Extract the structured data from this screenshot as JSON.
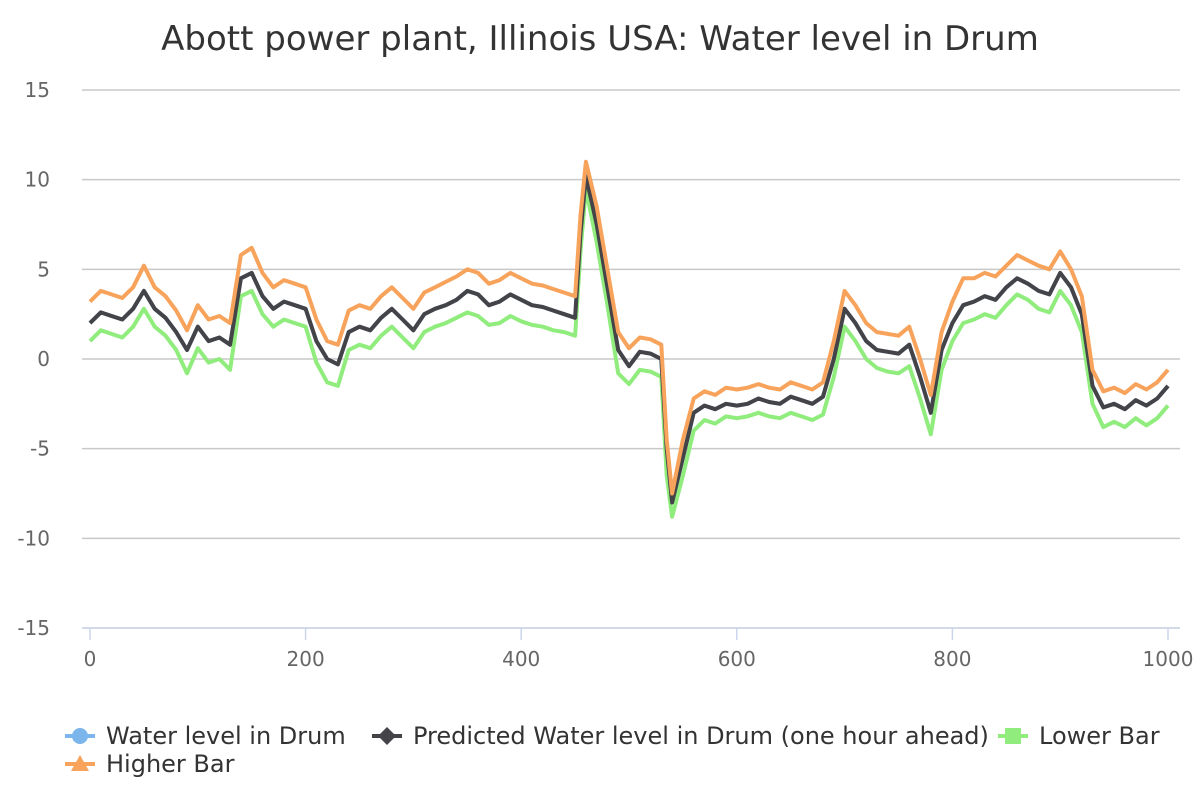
{
  "chart_data": {
    "type": "line",
    "title": "Abott power plant, Illinois USA: Water level in Drum",
    "xlabel": "",
    "ylabel": "",
    "xlim": [
      0,
      1000
    ],
    "ylim": [
      -15,
      15
    ],
    "x_ticks": [
      "0",
      "200",
      "400",
      "600",
      "800",
      "1000"
    ],
    "y_ticks": [
      "15",
      "10",
      "5",
      "0",
      "-5",
      "-10",
      "-15"
    ],
    "grid": true,
    "legend_position": "bottom-left",
    "x": [
      0,
      10,
      20,
      30,
      40,
      50,
      60,
      70,
      80,
      90,
      100,
      110,
      120,
      130,
      140,
      150,
      160,
      170,
      180,
      190,
      200,
      210,
      220,
      230,
      240,
      250,
      260,
      270,
      280,
      290,
      300,
      310,
      320,
      330,
      340,
      350,
      360,
      370,
      380,
      390,
      400,
      410,
      420,
      430,
      440,
      450,
      455,
      460,
      470,
      480,
      490,
      500,
      510,
      520,
      530,
      535,
      540,
      550,
      560,
      570,
      580,
      590,
      600,
      610,
      620,
      630,
      640,
      650,
      660,
      670,
      680,
      690,
      700,
      710,
      720,
      730,
      740,
      750,
      760,
      770,
      780,
      790,
      800,
      810,
      820,
      830,
      840,
      850,
      860,
      870,
      880,
      890,
      900,
      910,
      920,
      930,
      940,
      950,
      960,
      970,
      980,
      990,
      1000
    ],
    "series": [
      {
        "name": "Water level in Drum",
        "color": "#7cb5ec",
        "marker": "circle",
        "values": [
          2.0,
          2.6,
          2.4,
          2.2,
          2.8,
          3.8,
          2.8,
          2.3,
          1.5,
          0.5,
          1.8,
          1.0,
          1.2,
          0.8,
          4.5,
          4.8,
          3.5,
          2.8,
          3.2,
          3.0,
          2.8,
          1.0,
          0.0,
          -0.3,
          1.5,
          1.8,
          1.6,
          2.3,
          2.8,
          2.2,
          1.6,
          2.5,
          2.8,
          3.0,
          3.3,
          3.8,
          3.6,
          3.0,
          3.2,
          3.6,
          3.3,
          3.0,
          2.9,
          2.7,
          2.5,
          2.3,
          7.0,
          10.2,
          7.5,
          4.0,
          0.5,
          -0.4,
          0.4,
          0.3,
          0.0,
          -5.0,
          -8.0,
          -5.5,
          -3.0,
          -2.6,
          -2.8,
          -2.5,
          -2.6,
          -2.5,
          -2.2,
          -2.4,
          -2.5,
          -2.1,
          -2.3,
          -2.5,
          -2.1,
          0.0,
          2.8,
          2.0,
          1.0,
          0.5,
          0.4,
          0.3,
          0.8,
          -1.0,
          -3.0,
          0.5,
          2.0,
          3.0,
          3.2,
          3.5,
          3.3,
          4.0,
          4.5,
          4.2,
          3.8,
          3.6,
          4.8,
          4.0,
          2.5,
          -1.5,
          -2.7,
          -2.5,
          -2.8,
          -2.3,
          -2.6,
          -2.2,
          -1.5
        ]
      },
      {
        "name": "Predicted Water level in Drum (one hour ahead)",
        "color": "#434348",
        "marker": "diamond",
        "values": [
          2.0,
          2.6,
          2.4,
          2.2,
          2.8,
          3.8,
          2.8,
          2.3,
          1.5,
          0.5,
          1.8,
          1.0,
          1.2,
          0.8,
          4.5,
          4.8,
          3.5,
          2.8,
          3.2,
          3.0,
          2.8,
          1.0,
          0.0,
          -0.3,
          1.5,
          1.8,
          1.6,
          2.3,
          2.8,
          2.2,
          1.6,
          2.5,
          2.8,
          3.0,
          3.3,
          3.8,
          3.6,
          3.0,
          3.2,
          3.6,
          3.3,
          3.0,
          2.9,
          2.7,
          2.5,
          2.3,
          7.0,
          10.2,
          7.5,
          4.0,
          0.5,
          -0.4,
          0.4,
          0.3,
          0.0,
          -5.0,
          -8.0,
          -5.5,
          -3.0,
          -2.6,
          -2.8,
          -2.5,
          -2.6,
          -2.5,
          -2.2,
          -2.4,
          -2.5,
          -2.1,
          -2.3,
          -2.5,
          -2.1,
          0.0,
          2.8,
          2.0,
          1.0,
          0.5,
          0.4,
          0.3,
          0.8,
          -1.0,
          -3.0,
          0.5,
          2.0,
          3.0,
          3.2,
          3.5,
          3.3,
          4.0,
          4.5,
          4.2,
          3.8,
          3.6,
          4.8,
          4.0,
          2.5,
          -1.5,
          -2.7,
          -2.5,
          -2.8,
          -2.3,
          -2.6,
          -2.2,
          -1.5
        ]
      },
      {
        "name": "Lower Bar",
        "color": "#90ed7d",
        "marker": "square",
        "values": [
          1.0,
          1.6,
          1.4,
          1.2,
          1.8,
          2.8,
          1.8,
          1.3,
          0.5,
          -0.8,
          0.6,
          -0.2,
          0.0,
          -0.6,
          3.5,
          3.8,
          2.5,
          1.8,
          2.2,
          2.0,
          1.8,
          -0.2,
          -1.3,
          -1.5,
          0.5,
          0.8,
          0.6,
          1.3,
          1.8,
          1.2,
          0.6,
          1.5,
          1.8,
          2.0,
          2.3,
          2.6,
          2.4,
          1.9,
          2.0,
          2.4,
          2.1,
          1.9,
          1.8,
          1.6,
          1.5,
          1.3,
          6.0,
          9.5,
          6.5,
          3.0,
          -0.8,
          -1.4,
          -0.6,
          -0.7,
          -1.0,
          -6.5,
          -8.8,
          -6.5,
          -4.0,
          -3.4,
          -3.6,
          -3.2,
          -3.3,
          -3.2,
          -3.0,
          -3.2,
          -3.3,
          -3.0,
          -3.2,
          -3.4,
          -3.1,
          -1.0,
          1.8,
          1.0,
          0.0,
          -0.5,
          -0.7,
          -0.8,
          -0.4,
          -2.2,
          -4.2,
          -0.6,
          1.0,
          2.0,
          2.2,
          2.5,
          2.3,
          3.0,
          3.6,
          3.3,
          2.8,
          2.6,
          3.8,
          3.0,
          1.5,
          -2.5,
          -3.8,
          -3.5,
          -3.8,
          -3.3,
          -3.7,
          -3.3,
          -2.6
        ]
      },
      {
        "name": "Higher Bar",
        "color": "#f7a35c",
        "marker": "triangle",
        "values": [
          3.2,
          3.8,
          3.6,
          3.4,
          4.0,
          5.2,
          4.0,
          3.5,
          2.7,
          1.6,
          3.0,
          2.2,
          2.4,
          2.0,
          5.8,
          6.2,
          4.8,
          4.0,
          4.4,
          4.2,
          4.0,
          2.2,
          1.0,
          0.8,
          2.7,
          3.0,
          2.8,
          3.5,
          4.0,
          3.4,
          2.8,
          3.7,
          4.0,
          4.3,
          4.6,
          5.0,
          4.8,
          4.2,
          4.4,
          4.8,
          4.5,
          4.2,
          4.1,
          3.9,
          3.7,
          3.5,
          8.0,
          11.0,
          8.5,
          5.0,
          1.5,
          0.6,
          1.2,
          1.1,
          0.8,
          -4.5,
          -7.5,
          -4.5,
          -2.2,
          -1.8,
          -2.0,
          -1.6,
          -1.7,
          -1.6,
          -1.4,
          -1.6,
          -1.7,
          -1.3,
          -1.5,
          -1.7,
          -1.3,
          1.0,
          3.8,
          3.0,
          2.0,
          1.5,
          1.4,
          1.3,
          1.8,
          0.0,
          -2.0,
          1.5,
          3.2,
          4.5,
          4.5,
          4.8,
          4.6,
          5.2,
          5.8,
          5.5,
          5.2,
          5.0,
          6.0,
          5.0,
          3.5,
          -0.6,
          -1.8,
          -1.6,
          -1.9,
          -1.4,
          -1.7,
          -1.3,
          -0.6
        ]
      }
    ]
  }
}
